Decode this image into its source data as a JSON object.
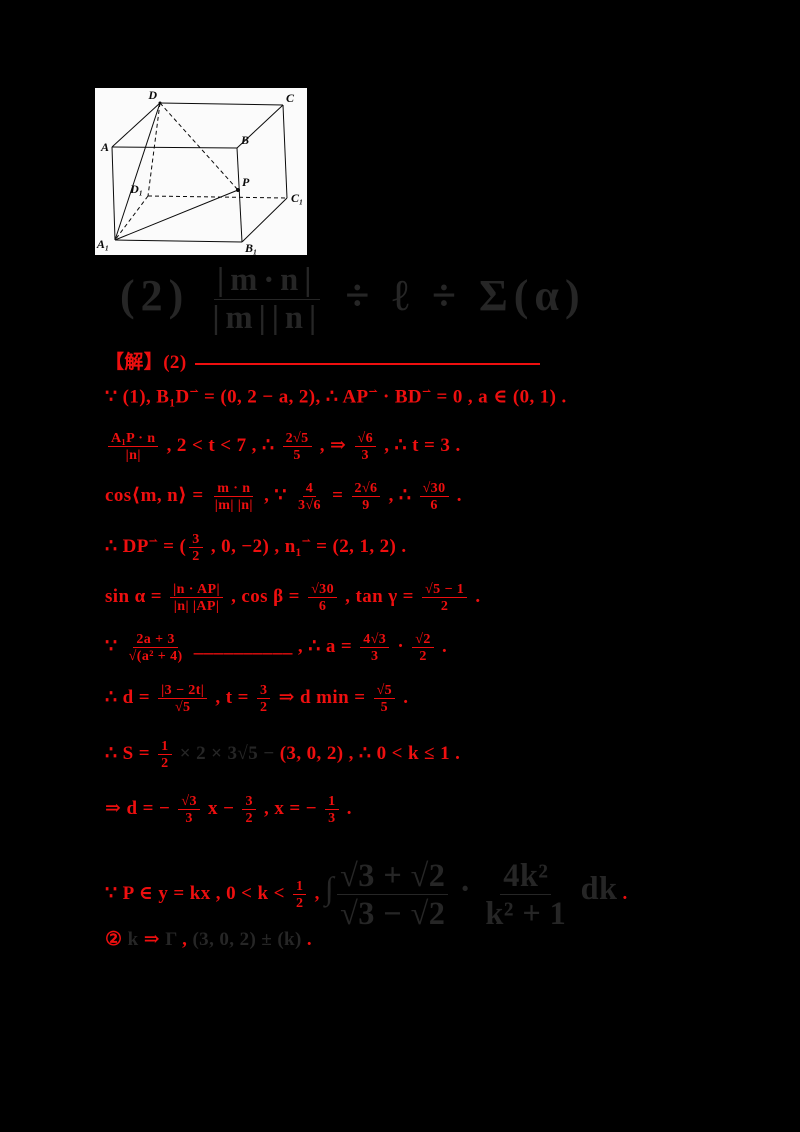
{
  "colors": {
    "red": "#ee0f0f",
    "dark": "#262626",
    "figure_bg": "#fbfbfb"
  },
  "figure": {
    "labels": {
      "A": "A",
      "B": "B",
      "C": "C",
      "D": "D",
      "A1": "A₁",
      "B1": "B₁",
      "C1": "C₁",
      "D1": "D₁",
      "P": "P"
    }
  },
  "faint": [
    {
      "t": "(2) "
    },
    {
      "frac": [
        "|m·n|",
        "|m||n|"
      ]
    },
    {
      "t": " ÷ "
    },
    {
      "t": "ℓ"
    },
    {
      "t": " ÷ "
    },
    {
      "t": "Σ(α)"
    }
  ],
  "lines": [
    [
      {
        "t": "【解】(2)"
      },
      {
        "rule": 345
      }
    ],
    [
      {
        "t": "∵ (1), "
      },
      {
        "t": "B₁D"
      },
      {
        "sup": "⇀"
      },
      {
        "t": " = (0, 2 − a, 2), ∴ "
      },
      {
        "t": "AP"
      },
      {
        "sup": "⇀"
      },
      {
        "t": " · "
      },
      {
        "t": "BD"
      },
      {
        "sup": "⇀"
      },
      {
        "t": " = 0 , a ∈ (0, 1) ."
      }
    ],
    [
      {
        "frac": [
          "A₁P · n",
          "|n|"
        ]
      },
      {
        "t": " , 2 < t < 7 , ∴ "
      },
      {
        "frac": [
          "2√5",
          "5"
        ]
      },
      {
        "t": " , ⇒ "
      },
      {
        "frac": [
          "√6",
          "3"
        ]
      },
      {
        "t": " , ∴ t = 3 ."
      }
    ],
    [
      {
        "t": "cos⟨m, n⟩ = "
      },
      {
        "frac": [
          "m · n",
          "|m| |n|"
        ]
      },
      {
        "t": " , ∵ "
      },
      {
        "frac": [
          "4",
          "3√6"
        ]
      },
      {
        "t": " = "
      },
      {
        "frac": [
          "2√6",
          "9"
        ]
      },
      {
        "t": " , ∴ "
      },
      {
        "frac": [
          "√30",
          "6"
        ]
      },
      {
        "t": " ."
      }
    ],
    [
      {
        "t": "∴ "
      },
      {
        "t": "DP"
      },
      {
        "sup": "⇀"
      },
      {
        "t": " = ("
      },
      {
        "frac": [
          "3",
          "2"
        ]
      },
      {
        "t": " , 0, −2) , "
      },
      {
        "t": "n₁"
      },
      {
        "sup": "⇀"
      },
      {
        "t": " = (2, 1, 2) ."
      }
    ],
    [
      {
        "t": "sin α = "
      },
      {
        "frac": [
          "|n · AP|",
          "|n| |AP|"
        ]
      },
      {
        "t": " , cos β = "
      },
      {
        "frac": [
          "√30",
          "6"
        ]
      },
      {
        "t": " , tan γ = "
      },
      {
        "frac": [
          "√5 − 1",
          "2"
        ]
      },
      {
        "t": " ."
      }
    ],
    [
      {
        "t": "∵ "
      },
      {
        "frac": [
          "2a + 3",
          "√(a² + 4)"
        ]
      },
      {
        "t": " __________ , ∴ a = "
      },
      {
        "frac": [
          "4√3",
          "3"
        ]
      },
      {
        "t": " · "
      },
      {
        "frac": [
          "√2",
          "2"
        ]
      },
      {
        "t": " ."
      }
    ],
    [
      {
        "t": "∴ d = "
      },
      {
        "frac": [
          "|3 − 2t|",
          "√5"
        ]
      },
      {
        "t": " , t = "
      },
      {
        "frac": [
          "3",
          "2"
        ]
      },
      {
        "t": " ⇒ d min = "
      },
      {
        "frac": [
          "√5",
          "5"
        ]
      },
      {
        "t": " ."
      }
    ],
    [
      {
        "t": "∴ S = "
      },
      {
        "frac": [
          "1",
          "2"
        ]
      },
      {
        "t": " × 2 × 3√5",
        "c": "dark"
      },
      {
        "t": " − ",
        "c": "dark"
      },
      {
        "t": "(3, 0, 2)"
      },
      {
        "t": " , ∴ "
      },
      {
        "t": "0 < k ≤ 1 ."
      }
    ],
    [
      {
        "t": "⇒ d = − "
      },
      {
        "frac": [
          "√3",
          "3"
        ]
      },
      {
        "t": " x − "
      },
      {
        "frac": [
          "3",
          "2"
        ]
      },
      {
        "t": " , x = − "
      },
      {
        "frac": [
          "1",
          "3"
        ]
      },
      {
        "t": " ."
      }
    ],
    [
      {
        "t": "∵ P ∈ y = kx , 0 < k < "
      },
      {
        "frac": [
          "1",
          "2"
        ]
      },
      {
        "t": " , "
      },
      {
        "t": "∫",
        "c": "dark",
        "big": true
      },
      {
        "frac": [
          "√3 + √2",
          "√3 − √2"
        ],
        "c": "dark",
        "big": true
      },
      {
        "t": " · ",
        "c": "dark",
        "big": true
      },
      {
        "frac": [
          "4k²",
          "k² + 1"
        ],
        "c": "dark",
        "big": true
      },
      {
        "t": " dk",
        "c": "dark",
        "big": true
      },
      {
        "t": " ."
      }
    ],
    [
      {
        "t": "② "
      },
      {
        "t": "k",
        "c": "dark"
      },
      {
        "t": " ⇒ "
      },
      {
        "t": "Γ",
        "c": "dark"
      },
      {
        "t": " , "
      },
      {
        "t": "(3, 0, 2) ± (k)",
        "c": "dark"
      },
      {
        "t": " ."
      }
    ]
  ]
}
